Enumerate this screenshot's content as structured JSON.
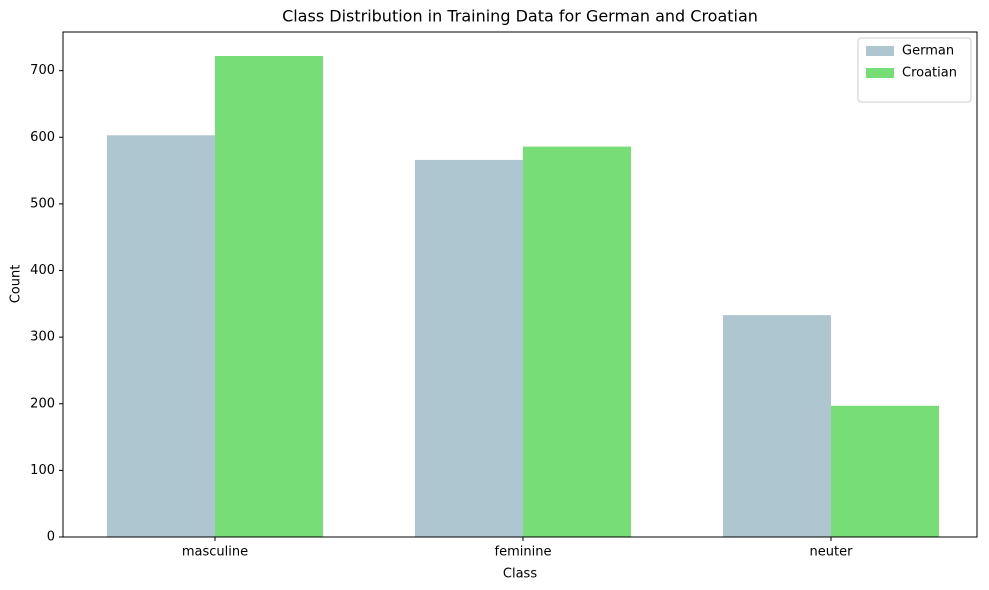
{
  "chart_data": {
    "type": "bar",
    "title": "Class Distribution in Training Data for German and Croatian",
    "x_label": "Class",
    "y_label": "Count",
    "categories": [
      "masculine",
      "feminine",
      "neuter"
    ],
    "series": [
      {
        "name": "German",
        "color": "#aec6cf",
        "values": [
          603,
          566,
          333
        ]
      },
      {
        "name": "Croatian",
        "color": "#77dd77",
        "values": [
          722,
          586,
          197
        ]
      }
    ],
    "ylim": [
      0,
      758
    ],
    "yticks": [
      0,
      100,
      200,
      300,
      400,
      500,
      600,
      700
    ],
    "grid": false,
    "legend": "upper right"
  }
}
